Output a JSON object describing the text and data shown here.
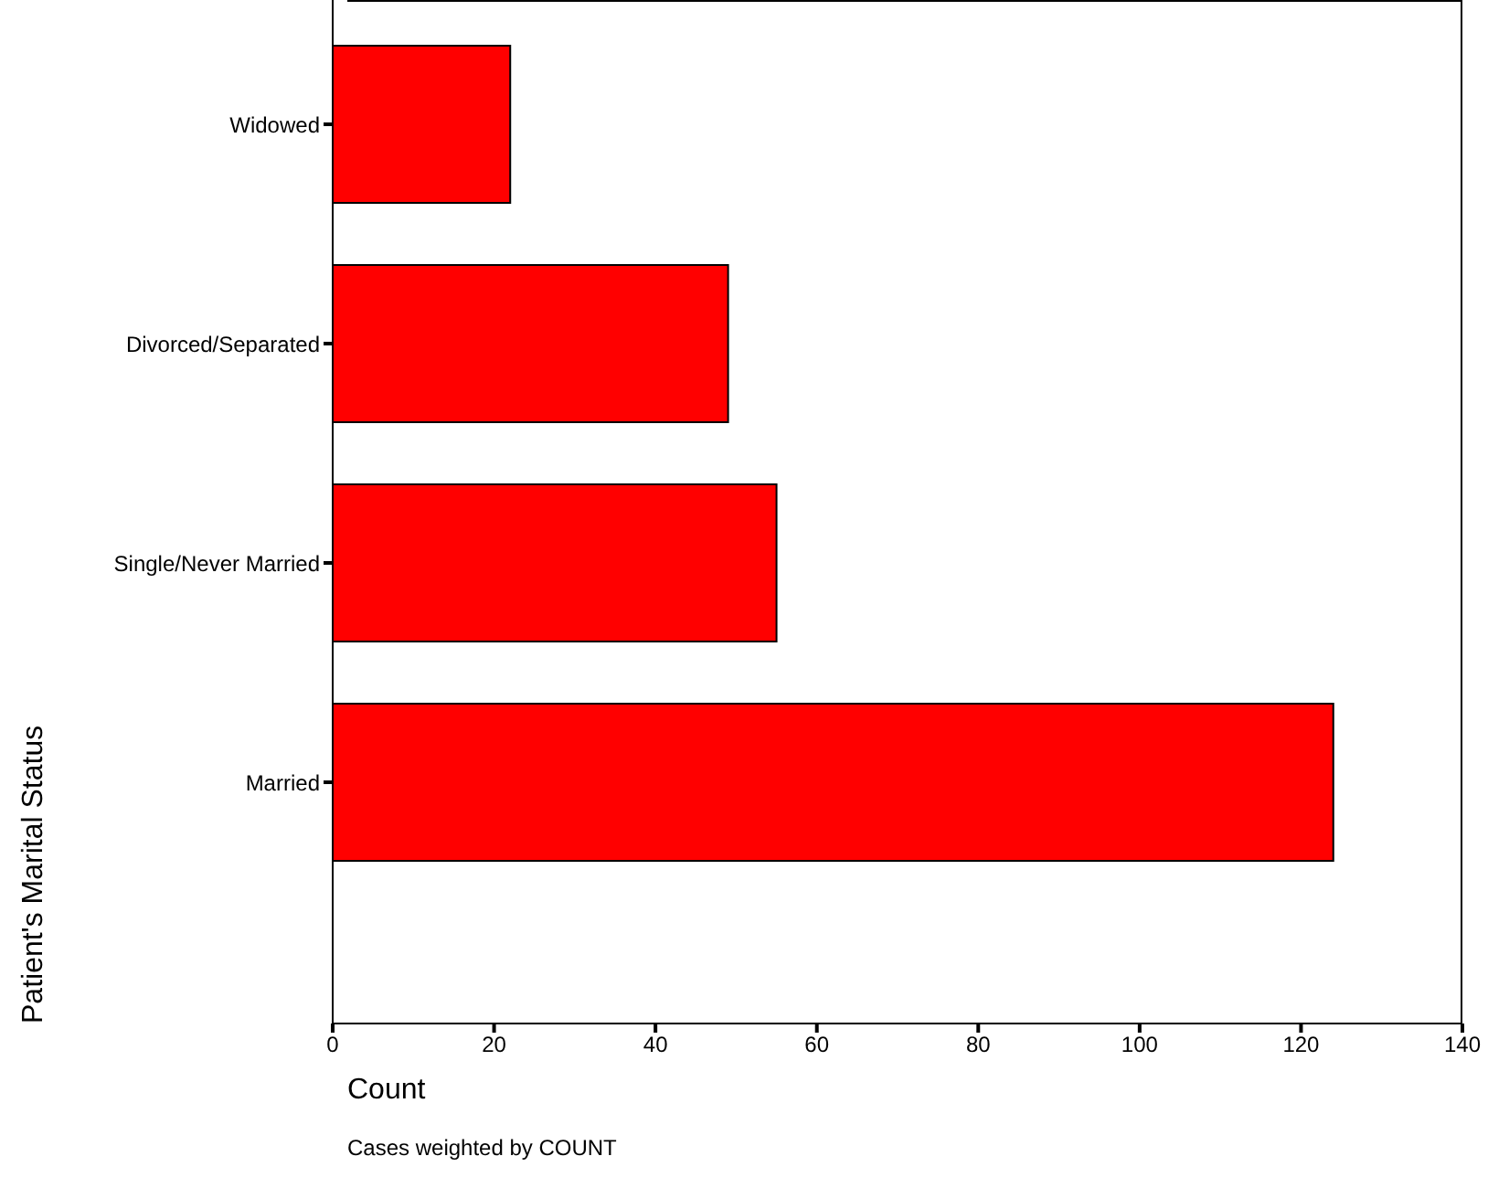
{
  "chart_data": {
    "type": "bar",
    "orientation": "horizontal",
    "categories": [
      "Widowed",
      "Divorced/Separated",
      "Single/Never Married",
      "Married"
    ],
    "values": [
      22,
      49,
      55,
      124
    ],
    "color": "#ff0000",
    "xlim": [
      0,
      140
    ],
    "xticks": [
      0,
      20,
      40,
      60,
      80,
      100,
      120,
      140
    ],
    "xlabel": "Count",
    "ylabel": "Patient's Marital Status",
    "annotations": [
      "Cases weighted by COUNT"
    ],
    "grid": false,
    "legend": false
  }
}
